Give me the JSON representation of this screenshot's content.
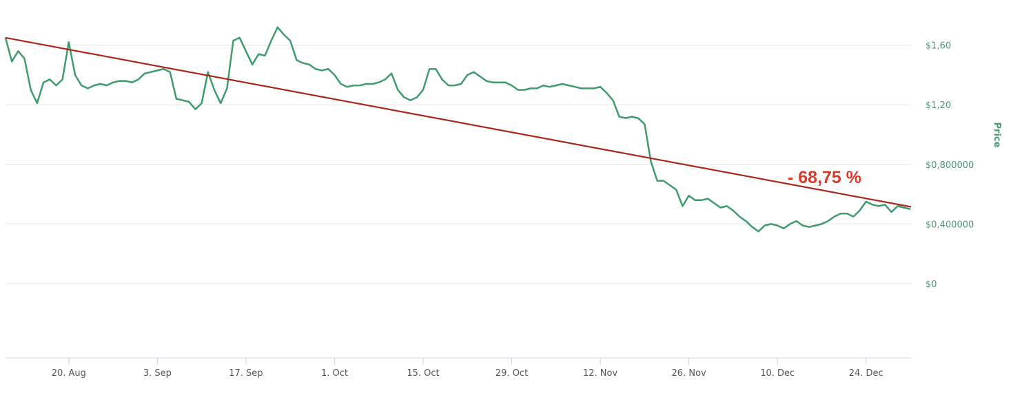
{
  "chart_data": {
    "type": "line",
    "ylabel": "Price",
    "ylim": [
      0,
      1.8
    ],
    "grid": true,
    "y_axis_side": "right",
    "y_ticks": [
      {
        "value": 0,
        "label": "$0"
      },
      {
        "value": 0.4,
        "label": "$0,400000"
      },
      {
        "value": 0.8,
        "label": "$0,800000"
      },
      {
        "value": 1.2,
        "label": "$1,20"
      },
      {
        "value": 1.6,
        "label": "$1,60"
      }
    ],
    "x_ticks": [
      {
        "date": "08-20",
        "label": "20. Aug"
      },
      {
        "date": "09-03",
        "label": "3. Sep"
      },
      {
        "date": "09-17",
        "label": "17. Sep"
      },
      {
        "date": "10-01",
        "label": "1. Oct"
      },
      {
        "date": "10-15",
        "label": "15. Oct"
      },
      {
        "date": "10-29",
        "label": "29. Oct"
      },
      {
        "date": "11-12",
        "label": "12. Nov"
      },
      {
        "date": "11-26",
        "label": "26. Nov"
      },
      {
        "date": "12-10",
        "label": "10. Dec"
      },
      {
        "date": "12-24",
        "label": "24. Dec"
      }
    ],
    "series": [
      {
        "color": "#3f9a6e",
        "points": [
          [
            "08-10",
            1.65
          ],
          [
            "08-11",
            1.49
          ],
          [
            "08-12",
            1.56
          ],
          [
            "08-13",
            1.51
          ],
          [
            "08-14",
            1.3
          ],
          [
            "08-15",
            1.21
          ],
          [
            "08-16",
            1.35
          ],
          [
            "08-17",
            1.37
          ],
          [
            "08-18",
            1.33
          ],
          [
            "08-19",
            1.37
          ],
          [
            "08-20",
            1.62
          ],
          [
            "08-21",
            1.4
          ],
          [
            "08-22",
            1.33
          ],
          [
            "08-23",
            1.31
          ],
          [
            "08-24",
            1.33
          ],
          [
            "08-25",
            1.34
          ],
          [
            "08-26",
            1.33
          ],
          [
            "08-27",
            1.35
          ],
          [
            "08-28",
            1.36
          ],
          [
            "08-29",
            1.36
          ],
          [
            "08-30",
            1.35
          ],
          [
            "08-31",
            1.37
          ],
          [
            "09-01",
            1.41
          ],
          [
            "09-02",
            1.42
          ],
          [
            "09-03",
            1.43
          ],
          [
            "09-04",
            1.44
          ],
          [
            "09-05",
            1.42
          ],
          [
            "09-06",
            1.24
          ],
          [
            "09-07",
            1.23
          ],
          [
            "09-08",
            1.22
          ],
          [
            "09-09",
            1.17
          ],
          [
            "09-10",
            1.21
          ],
          [
            "09-11",
            1.42
          ],
          [
            "09-12",
            1.3
          ],
          [
            "09-13",
            1.21
          ],
          [
            "09-14",
            1.31
          ],
          [
            "09-15",
            1.63
          ],
          [
            "09-16",
            1.65
          ],
          [
            "09-17",
            1.56
          ],
          [
            "09-18",
            1.47
          ],
          [
            "09-19",
            1.54
          ],
          [
            "09-20",
            1.53
          ],
          [
            "09-21",
            1.63
          ],
          [
            "09-22",
            1.72
          ],
          [
            "09-23",
            1.67
          ],
          [
            "09-24",
            1.63
          ],
          [
            "09-25",
            1.5
          ],
          [
            "09-26",
            1.48
          ],
          [
            "09-27",
            1.47
          ],
          [
            "09-28",
            1.44
          ],
          [
            "09-29",
            1.43
          ],
          [
            "09-30",
            1.44
          ],
          [
            "10-01",
            1.4
          ],
          [
            "10-02",
            1.34
          ],
          [
            "10-03",
            1.32
          ],
          [
            "10-04",
            1.33
          ],
          [
            "10-05",
            1.33
          ],
          [
            "10-06",
            1.34
          ],
          [
            "10-07",
            1.34
          ],
          [
            "10-08",
            1.35
          ],
          [
            "10-09",
            1.37
          ],
          [
            "10-10",
            1.41
          ],
          [
            "10-11",
            1.3
          ],
          [
            "10-12",
            1.25
          ],
          [
            "10-13",
            1.23
          ],
          [
            "10-14",
            1.25
          ],
          [
            "10-15",
            1.3
          ],
          [
            "10-16",
            1.44
          ],
          [
            "10-17",
            1.44
          ],
          [
            "10-18",
            1.37
          ],
          [
            "10-19",
            1.33
          ],
          [
            "10-20",
            1.33
          ],
          [
            "10-21",
            1.34
          ],
          [
            "10-22",
            1.4
          ],
          [
            "10-23",
            1.42
          ],
          [
            "10-24",
            1.39
          ],
          [
            "10-25",
            1.36
          ],
          [
            "10-26",
            1.35
          ],
          [
            "10-27",
            1.35
          ],
          [
            "10-28",
            1.35
          ],
          [
            "10-29",
            1.33
          ],
          [
            "10-30",
            1.3
          ],
          [
            "10-31",
            1.3
          ],
          [
            "11-01",
            1.31
          ],
          [
            "11-02",
            1.31
          ],
          [
            "11-03",
            1.33
          ],
          [
            "11-04",
            1.32
          ],
          [
            "11-05",
            1.33
          ],
          [
            "11-06",
            1.34
          ],
          [
            "11-07",
            1.33
          ],
          [
            "11-08",
            1.32
          ],
          [
            "11-09",
            1.31
          ],
          [
            "11-10",
            1.31
          ],
          [
            "11-11",
            1.31
          ],
          [
            "11-12",
            1.32
          ],
          [
            "11-13",
            1.28
          ],
          [
            "11-14",
            1.23
          ],
          [
            "11-15",
            1.12
          ],
          [
            "11-16",
            1.11
          ],
          [
            "11-17",
            1.12
          ],
          [
            "11-18",
            1.11
          ],
          [
            "11-19",
            1.07
          ],
          [
            "11-20",
            0.82
          ],
          [
            "11-21",
            0.69
          ],
          [
            "11-22",
            0.69
          ],
          [
            "11-23",
            0.66
          ],
          [
            "11-24",
            0.63
          ],
          [
            "11-25",
            0.52
          ],
          [
            "11-26",
            0.59
          ],
          [
            "11-27",
            0.56
          ],
          [
            "11-28",
            0.56
          ],
          [
            "11-29",
            0.57
          ],
          [
            "11-30",
            0.54
          ],
          [
            "12-01",
            0.51
          ],
          [
            "12-02",
            0.52
          ],
          [
            "12-03",
            0.49
          ],
          [
            "12-04",
            0.45
          ],
          [
            "12-05",
            0.42
          ],
          [
            "12-06",
            0.38
          ],
          [
            "12-07",
            0.35
          ],
          [
            "12-08",
            0.39
          ],
          [
            "12-09",
            0.4
          ],
          [
            "12-10",
            0.39
          ],
          [
            "12-11",
            0.37
          ],
          [
            "12-12",
            0.4
          ],
          [
            "12-13",
            0.42
          ],
          [
            "12-14",
            0.39
          ],
          [
            "12-15",
            0.38
          ],
          [
            "12-16",
            0.39
          ],
          [
            "12-17",
            0.4
          ],
          [
            "12-18",
            0.42
          ],
          [
            "12-19",
            0.45
          ],
          [
            "12-20",
            0.47
          ],
          [
            "12-21",
            0.47
          ],
          [
            "12-22",
            0.45
          ],
          [
            "12-23",
            0.49
          ],
          [
            "12-24",
            0.55
          ],
          [
            "12-25",
            0.53
          ],
          [
            "12-26",
            0.52
          ],
          [
            "12-27",
            0.53
          ],
          [
            "12-28",
            0.48
          ],
          [
            "12-29",
            0.52
          ],
          [
            "12-30",
            0.51
          ],
          [
            "12-31",
            0.5
          ]
        ]
      }
    ],
    "trend_line": {
      "color": "#a8281a",
      "from": [
        "08-10",
        1.65
      ],
      "to": [
        "12-31",
        0.515
      ]
    },
    "annotation": {
      "text": "- 68,75 %",
      "color": "#d93a2b"
    }
  }
}
